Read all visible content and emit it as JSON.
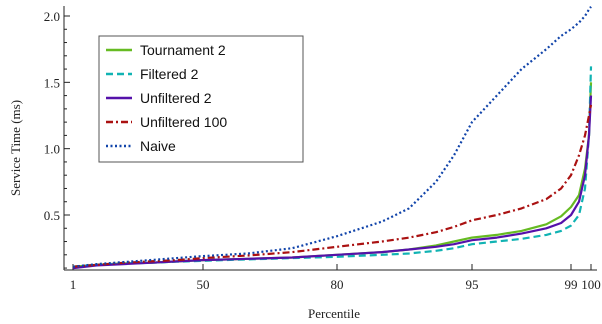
{
  "chart_data": {
    "type": "line",
    "xlabel": "Percentile",
    "ylabel": "Service Time (ms)",
    "x_ticks": [
      {
        "label": "1",
        "percentile": 1
      },
      {
        "label": "50",
        "percentile": 50
      },
      {
        "label": "80",
        "percentile": 80
      },
      {
        "label": "95",
        "percentile": 95
      },
      {
        "label": "99",
        "percentile": 99
      },
      {
        "label": "100",
        "percentile": 100
      }
    ],
    "y_ticks": [
      "0.5",
      "1.0",
      "1.5",
      "2.0"
    ],
    "ylim": [
      0.07,
      2.1
    ],
    "legend_position": "top-left",
    "grid": false,
    "series": [
      {
        "name": "Tournament 2",
        "color": "#66bb22",
        "dash": "solid",
        "points": [
          [
            1,
            0.11
          ],
          [
            10,
            0.125
          ],
          [
            20,
            0.135
          ],
          [
            30,
            0.14
          ],
          [
            40,
            0.15
          ],
          [
            50,
            0.16
          ],
          [
            60,
            0.17
          ],
          [
            70,
            0.18
          ],
          [
            80,
            0.2
          ],
          [
            85,
            0.22
          ],
          [
            88,
            0.24
          ],
          [
            91,
            0.27
          ],
          [
            93,
            0.3
          ],
          [
            95,
            0.33
          ],
          [
            96,
            0.35
          ],
          [
            97,
            0.38
          ],
          [
            98,
            0.43
          ],
          [
            98.6,
            0.49
          ],
          [
            99,
            0.56
          ],
          [
            99.4,
            0.65
          ],
          [
            99.7,
            0.85
          ],
          [
            99.9,
            1.1
          ],
          [
            100,
            1.5
          ]
        ]
      },
      {
        "name": "Filtered 2",
        "color": "#11b3b3",
        "dash": "dashed",
        "points": [
          [
            1,
            0.11
          ],
          [
            10,
            0.125
          ],
          [
            20,
            0.135
          ],
          [
            30,
            0.14
          ],
          [
            40,
            0.148
          ],
          [
            50,
            0.155
          ],
          [
            60,
            0.165
          ],
          [
            70,
            0.175
          ],
          [
            80,
            0.185
          ],
          [
            85,
            0.2
          ],
          [
            88,
            0.21
          ],
          [
            91,
            0.23
          ],
          [
            93,
            0.25
          ],
          [
            95,
            0.28
          ],
          [
            96,
            0.3
          ],
          [
            97,
            0.32
          ],
          [
            98,
            0.35
          ],
          [
            98.6,
            0.38
          ],
          [
            99,
            0.42
          ],
          [
            99.4,
            0.5
          ],
          [
            99.7,
            0.7
          ],
          [
            99.9,
            1.1
          ],
          [
            100,
            1.62
          ]
        ]
      },
      {
        "name": "Unfiltered 2",
        "color": "#5511aa",
        "dash": "solid",
        "points": [
          [
            1,
            0.1
          ],
          [
            10,
            0.12
          ],
          [
            20,
            0.13
          ],
          [
            30,
            0.14
          ],
          [
            40,
            0.15
          ],
          [
            50,
            0.16
          ],
          [
            60,
            0.17
          ],
          [
            70,
            0.18
          ],
          [
            80,
            0.2
          ],
          [
            85,
            0.22
          ],
          [
            88,
            0.24
          ],
          [
            91,
            0.26
          ],
          [
            93,
            0.28
          ],
          [
            95,
            0.31
          ],
          [
            96,
            0.33
          ],
          [
            97,
            0.36
          ],
          [
            98,
            0.4
          ],
          [
            98.6,
            0.44
          ],
          [
            99,
            0.5
          ],
          [
            99.4,
            0.6
          ],
          [
            99.7,
            0.8
          ],
          [
            99.9,
            1.1
          ],
          [
            100,
            1.4
          ]
        ]
      },
      {
        "name": "Unfiltered 100",
        "color": "#aa1111",
        "dash": "dashdot",
        "points": [
          [
            1,
            0.11
          ],
          [
            10,
            0.125
          ],
          [
            20,
            0.14
          ],
          [
            30,
            0.15
          ],
          [
            40,
            0.16
          ],
          [
            50,
            0.175
          ],
          [
            60,
            0.195
          ],
          [
            70,
            0.22
          ],
          [
            80,
            0.26
          ],
          [
            85,
            0.3
          ],
          [
            88,
            0.33
          ],
          [
            91,
            0.37
          ],
          [
            93,
            0.41
          ],
          [
            95,
            0.46
          ],
          [
            96,
            0.5
          ],
          [
            97,
            0.55
          ],
          [
            98,
            0.62
          ],
          [
            98.6,
            0.7
          ],
          [
            99,
            0.8
          ],
          [
            99.4,
            0.95
          ],
          [
            99.7,
            1.1
          ],
          [
            99.9,
            1.25
          ],
          [
            100,
            1.33
          ]
        ]
      },
      {
        "name": "Naive",
        "color": "#1144aa",
        "dash": "dotted",
        "points": [
          [
            1,
            0.11
          ],
          [
            10,
            0.13
          ],
          [
            20,
            0.145
          ],
          [
            30,
            0.16
          ],
          [
            40,
            0.175
          ],
          [
            50,
            0.19
          ],
          [
            60,
            0.21
          ],
          [
            70,
            0.25
          ],
          [
            80,
            0.34
          ],
          [
            85,
            0.45
          ],
          [
            88,
            0.55
          ],
          [
            91,
            0.75
          ],
          [
            93,
            0.95
          ],
          [
            95,
            1.2
          ],
          [
            96,
            1.4
          ],
          [
            97,
            1.6
          ],
          [
            98,
            1.75
          ],
          [
            98.6,
            1.85
          ],
          [
            99,
            1.9
          ],
          [
            99.4,
            1.95
          ],
          [
            99.7,
            2.0
          ],
          [
            99.9,
            2.05
          ],
          [
            100,
            2.07
          ]
        ]
      }
    ]
  }
}
